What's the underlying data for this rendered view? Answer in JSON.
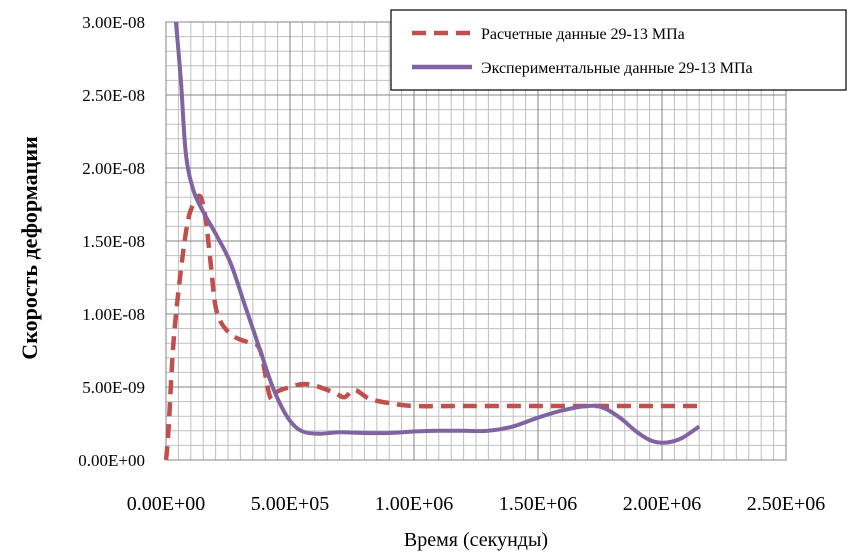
{
  "chart_data": {
    "type": "line",
    "xlabel": "Время (секунды)",
    "ylabel": "Скорость деформации",
    "xlim": [
      0,
      2500000
    ],
    "ylim": [
      0,
      3e-08
    ],
    "x_ticks": [
      "0.00E+00",
      "5.00E+05",
      "1.00E+06",
      "1.50E+06",
      "2.00E+06",
      "2.50E+06"
    ],
    "y_ticks": [
      "0.00E+00",
      "5.00E-09",
      "1.00E-08",
      "1.50E-08",
      "2.00E-08",
      "2.50E-08",
      "3.00E-08"
    ],
    "grid": true,
    "legend_position": "top-right",
    "series": [
      {
        "name": "Расчетные данные 29-13 МПа",
        "color": "#c0504d",
        "style": "dashed",
        "points": [
          [
            0,
            0
          ],
          [
            10000,
            2e-09
          ],
          [
            30000,
            8e-09
          ],
          [
            60000,
            1.3e-08
          ],
          [
            90000,
            1.65e-08
          ],
          [
            120000,
            1.78e-08
          ],
          [
            140000,
            1.8e-08
          ],
          [
            160000,
            1.65e-08
          ],
          [
            180000,
            1.35e-08
          ],
          [
            200000,
            1.05e-08
          ],
          [
            230000,
            9.2e-09
          ],
          [
            280000,
            8.4e-09
          ],
          [
            340000,
            8e-09
          ],
          [
            380000,
            7.5e-09
          ],
          [
            420000,
            4.3e-09
          ],
          [
            450000,
            4.7e-09
          ],
          [
            500000,
            5e-09
          ],
          [
            550000,
            5.2e-09
          ],
          [
            600000,
            5.1e-09
          ],
          [
            680000,
            4.6e-09
          ],
          [
            720000,
            4.3e-09
          ],
          [
            760000,
            4.8e-09
          ],
          [
            820000,
            4.2e-09
          ],
          [
            900000,
            3.9e-09
          ],
          [
            1000000,
            3.7e-09
          ],
          [
            1200000,
            3.7e-09
          ],
          [
            1500000,
            3.7e-09
          ],
          [
            1800000,
            3.7e-09
          ],
          [
            2050000,
            3.7e-09
          ],
          [
            2150000,
            3.7e-09
          ]
        ]
      },
      {
        "name": "Экспериментальные данные 29-13 МПа",
        "color": "#8064a2",
        "style": "solid",
        "points": [
          [
            40000,
            3e-08
          ],
          [
            60000,
            2.6e-08
          ],
          [
            80000,
            2.1e-08
          ],
          [
            110000,
            1.85e-08
          ],
          [
            150000,
            1.7e-08
          ],
          [
            200000,
            1.55e-08
          ],
          [
            260000,
            1.35e-08
          ],
          [
            320000,
            1.05e-08
          ],
          [
            380000,
            7.5e-09
          ],
          [
            430000,
            5e-09
          ],
          [
            480000,
            3.2e-09
          ],
          [
            520000,
            2.3e-09
          ],
          [
            560000,
            1.9e-09
          ],
          [
            620000,
            1.8e-09
          ],
          [
            700000,
            1.9e-09
          ],
          [
            800000,
            1.85e-09
          ],
          [
            900000,
            1.85e-09
          ],
          [
            1000000,
            1.95e-09
          ],
          [
            1100000,
            2e-09
          ],
          [
            1200000,
            2e-09
          ],
          [
            1300000,
            2e-09
          ],
          [
            1400000,
            2.3e-09
          ],
          [
            1500000,
            2.9e-09
          ],
          [
            1600000,
            3.4e-09
          ],
          [
            1700000,
            3.7e-09
          ],
          [
            1760000,
            3.6e-09
          ],
          [
            1830000,
            2.9e-09
          ],
          [
            1900000,
            1.9e-09
          ],
          [
            1960000,
            1.3e-09
          ],
          [
            2020000,
            1.2e-09
          ],
          [
            2080000,
            1.5e-09
          ],
          [
            2150000,
            2.3e-09
          ]
        ]
      }
    ]
  }
}
